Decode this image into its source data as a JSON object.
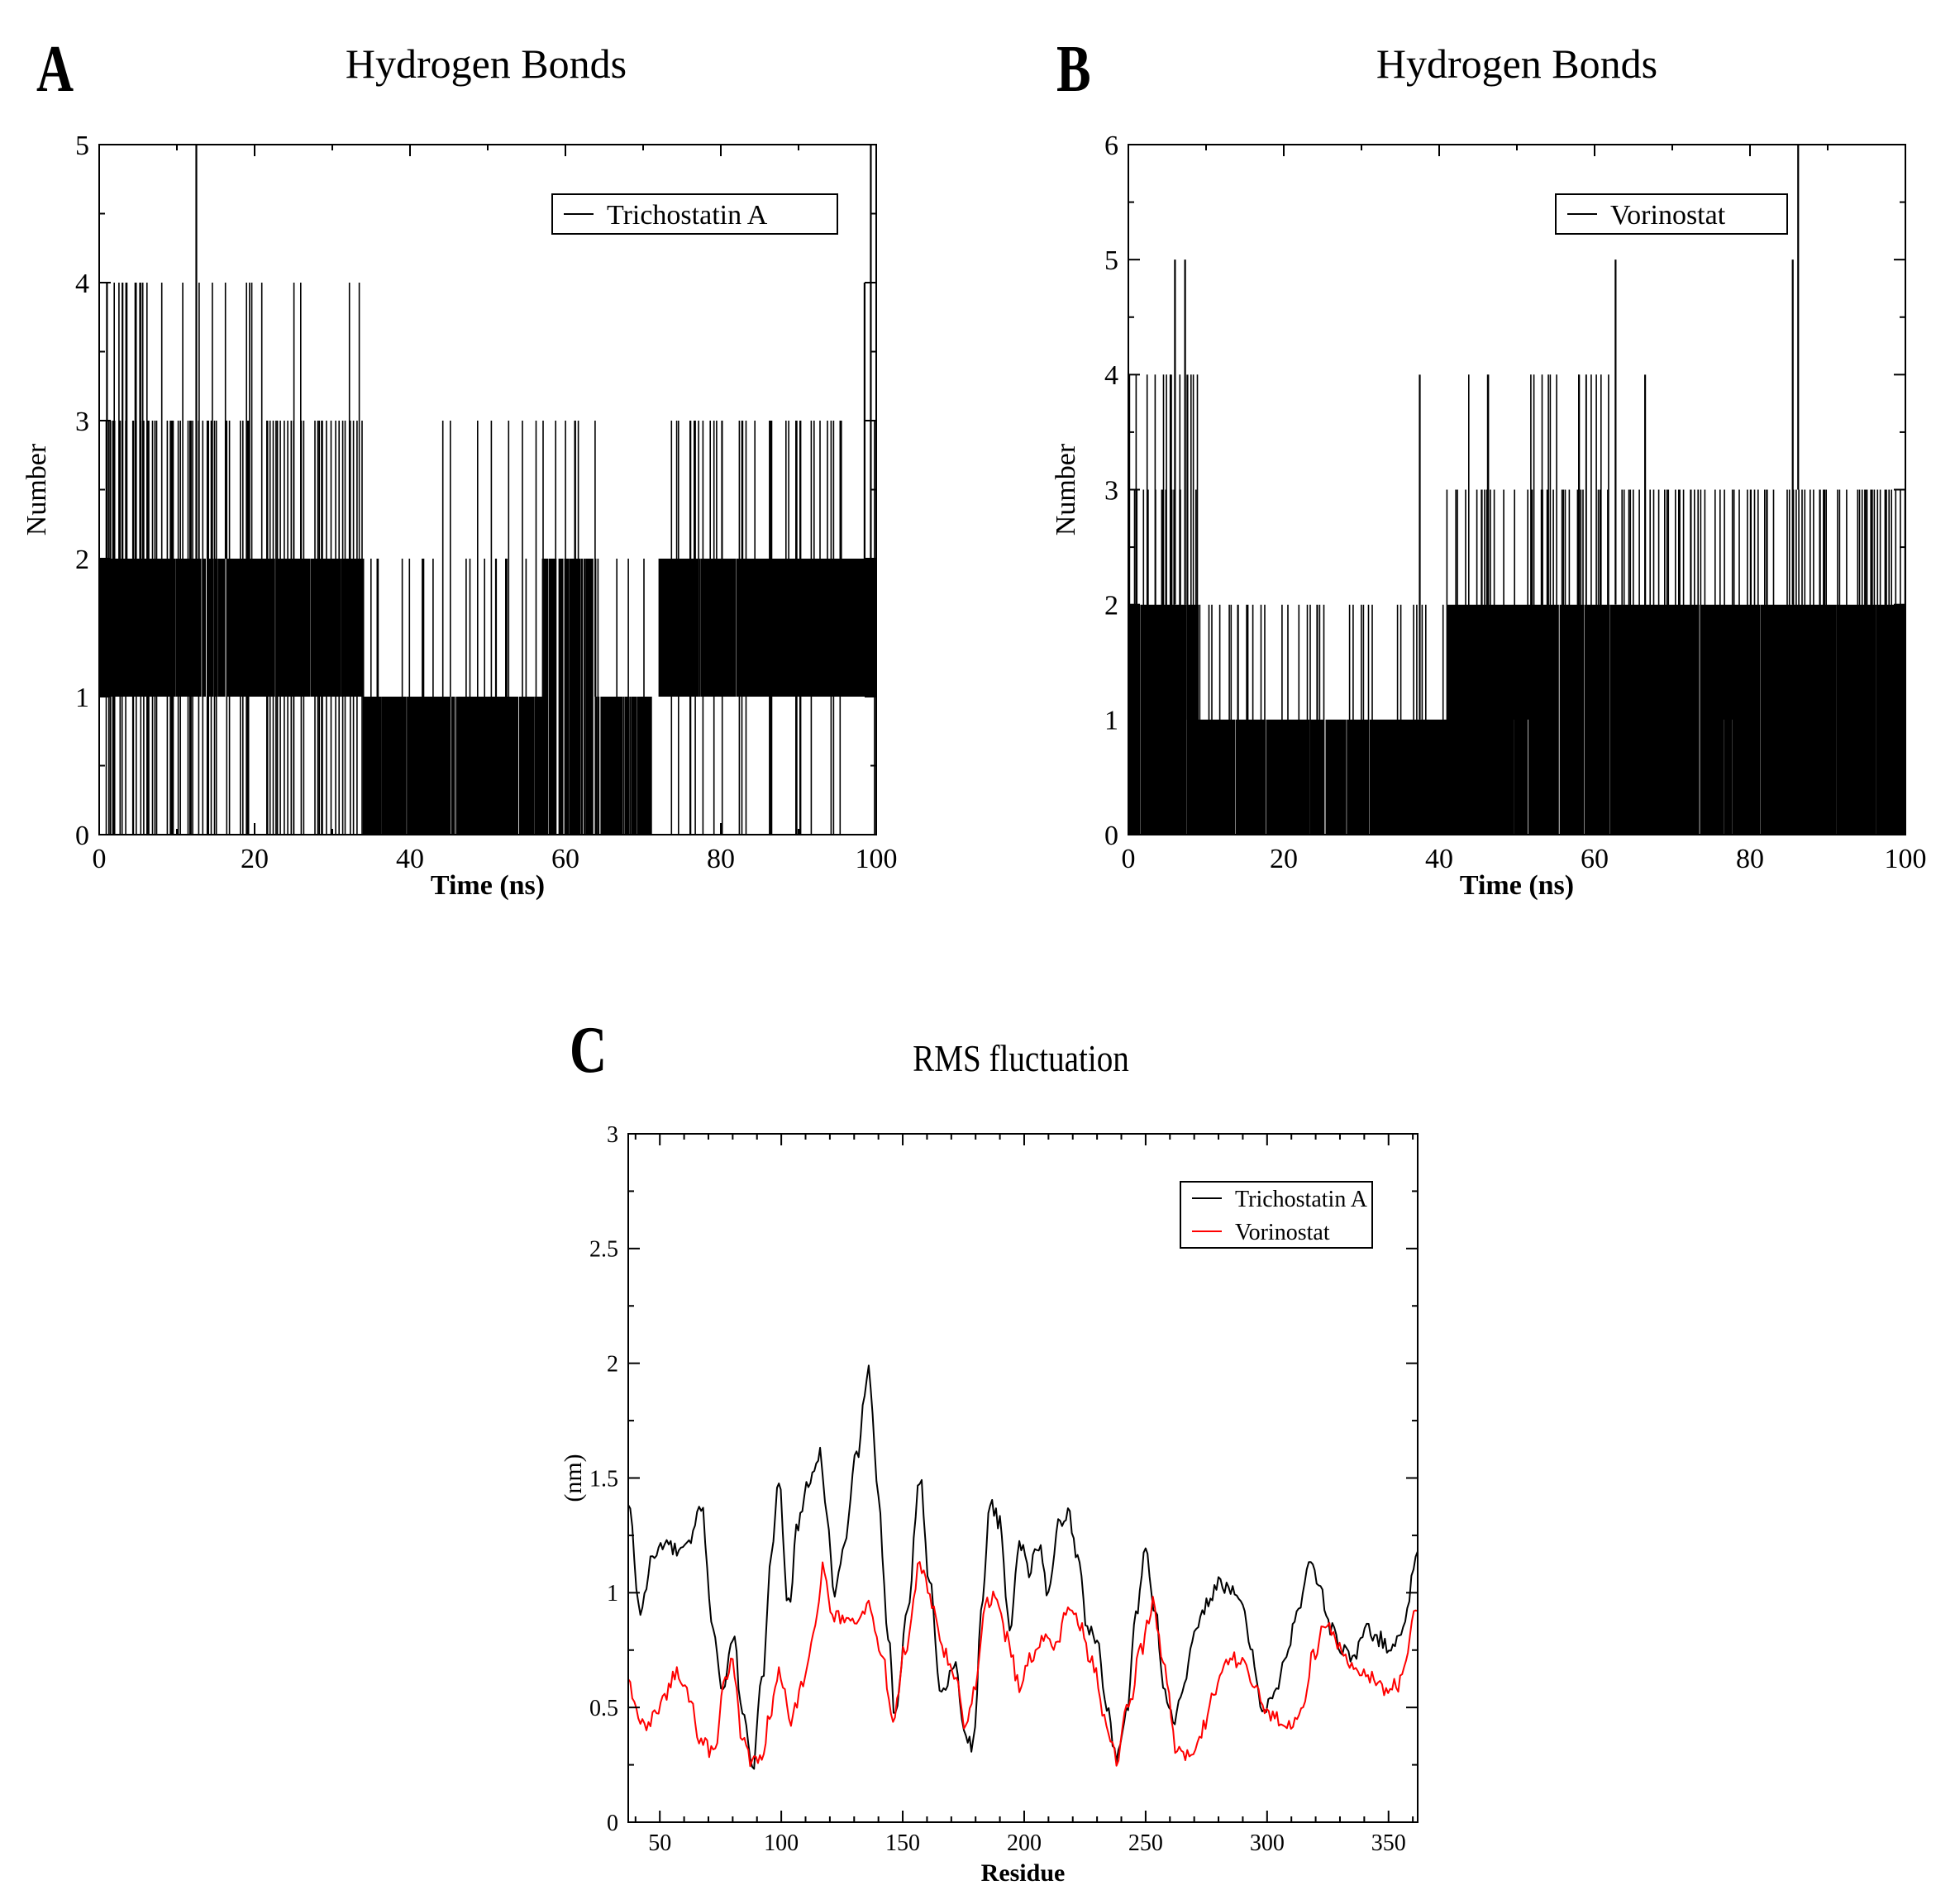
{
  "chart_data": [
    {
      "panel": "A",
      "type": "line",
      "title": "Hydrogen Bonds",
      "xlabel": "Time (ns)",
      "ylabel": "Number",
      "xlim": [
        0,
        100
      ],
      "ylim": [
        0,
        5
      ],
      "xticks": [
        0,
        20,
        40,
        60,
        80,
        100
      ],
      "yticks": [
        0,
        1,
        2,
        3,
        4,
        5
      ],
      "legend_position": "top-right",
      "series": [
        {
          "name": "Trichostatin A",
          "color": "#000000",
          "segments": [
            {
              "x": [
                0,
                13
              ],
              "bands": [
                [
                  1,
                  2,
                  0.95
                ],
                [
                  0,
                  3,
                  0.18
                ],
                [
                  2,
                  4,
                  0.12
                ]
              ]
            },
            {
              "x": [
                13,
                25
              ],
              "bands": [
                [
                  1,
                  2,
                  0.9
                ],
                [
                  0,
                  3,
                  0.15
                ],
                [
                  2,
                  4,
                  0.06
                ]
              ]
            },
            {
              "x": [
                25,
                34
              ],
              "bands": [
                [
                  1,
                  2,
                  0.95
                ],
                [
                  0,
                  3,
                  0.15
                ],
                [
                  2,
                  4,
                  0.04
                ]
              ]
            },
            {
              "x": [
                34,
                42
              ],
              "bands": [
                [
                  0,
                  1,
                  0.8
                ],
                [
                  0,
                  2,
                  0.08
                ],
                [
                  1,
                  3,
                  0.03
                ]
              ]
            },
            {
              "x": [
                42,
                57
              ],
              "bands": [
                [
                  0,
                  1,
                  0.85
                ],
                [
                  1,
                  2,
                  0.05
                ],
                [
                  1,
                  3,
                  0.03
                ]
              ]
            },
            {
              "x": [
                57,
                64
              ],
              "bands": [
                [
                  0,
                  2,
                  0.7
                ],
                [
                  1,
                  3,
                  0.06
                ]
              ]
            },
            {
              "x": [
                64,
                71
              ],
              "bands": [
                [
                  0,
                  1,
                  0.85
                ],
                [
                  1,
                  2,
                  0.08
                ]
              ]
            },
            {
              "x": [
                72,
                100
              ],
              "bands": [
                [
                  1,
                  2,
                  0.97
                ],
                [
                  0,
                  3,
                  0.12
                ],
                [
                  2,
                  3,
                  0.05
                ]
              ]
            }
          ],
          "spikes": [
            [
              12.5,
              5
            ],
            [
              99.3,
              5
            ],
            [
              1,
              4
            ],
            [
              3,
              4
            ],
            [
              98.5,
              4
            ],
            [
              100,
              3
            ]
          ]
        }
      ]
    },
    {
      "panel": "B",
      "type": "line",
      "title": "Hydrogen Bonds",
      "xlabel": "Time (ns)",
      "ylabel": "Number",
      "xlim": [
        0,
        100
      ],
      "ylim": [
        0,
        6
      ],
      "xticks": [
        0,
        20,
        40,
        60,
        80,
        100
      ],
      "yticks": [
        0,
        1,
        2,
        3,
        4,
        5,
        6
      ],
      "legend_position": "top-right",
      "series": [
        {
          "name": "Vorinostat",
          "color": "#000000",
          "segments": [
            {
              "x": [
                0,
                9
              ],
              "bands": [
                [
                  0,
                  2,
                  0.95
                ],
                [
                  1,
                  3,
                  0.2
                ],
                [
                  2,
                  4,
                  0.06
                ]
              ]
            },
            {
              "x": [
                9,
                41
              ],
              "bands": [
                [
                  0,
                  1,
                  0.97
                ],
                [
                  1,
                  2,
                  0.1
                ]
              ]
            },
            {
              "x": [
                41,
                62
              ],
              "bands": [
                [
                  0,
                  2,
                  0.95
                ],
                [
                  1,
                  3,
                  0.15
                ],
                [
                  2,
                  4,
                  0.03
                ]
              ]
            },
            {
              "x": [
                62,
                85
              ],
              "bands": [
                [
                  0,
                  2,
                  0.95
                ],
                [
                  1,
                  3,
                  0.12
                ]
              ]
            },
            {
              "x": [
                85,
                100
              ],
              "bands": [
                [
                  0,
                  2,
                  0.95
                ],
                [
                  1,
                  3,
                  0.18
                ]
              ]
            }
          ],
          "spikes": [
            [
              6,
              5
            ],
            [
              7.3,
              5
            ],
            [
              5.5,
              4
            ],
            [
              7.6,
              4
            ],
            [
              37.5,
              4
            ],
            [
              62.7,
              5
            ],
            [
              85.5,
              5
            ],
            [
              86.2,
              6
            ],
            [
              58,
              4
            ],
            [
              66.5,
              4
            ]
          ]
        }
      ]
    },
    {
      "panel": "C",
      "type": "line",
      "title": "RMS fluctuation",
      "xlabel": "Residue",
      "ylabel": "(nm)",
      "xlim": [
        37,
        362
      ],
      "ylim": [
        0,
        3
      ],
      "xticks": [
        50,
        100,
        150,
        200,
        250,
        300,
        350
      ],
      "yticks": [
        0,
        0.5,
        1,
        1.5,
        2,
        2.5,
        3
      ],
      "ytick_labels": [
        "0",
        "0.5",
        "1",
        "1.5",
        "2",
        "2.5",
        "3"
      ],
      "legend_position": "top-right",
      "series": [
        {
          "name": "Trichostatin A",
          "color": "#000000",
          "x": [
            37,
            42,
            47,
            52,
            57,
            62,
            67,
            72,
            76,
            80,
            84,
            88,
            92,
            96,
            99,
            103,
            107,
            112,
            116,
            118,
            122,
            126,
            131,
            136,
            140,
            144,
            147,
            152,
            157,
            161,
            166,
            171,
            176,
            179,
            183,
            186,
            190,
            194,
            198,
            202,
            206,
            210,
            214,
            218,
            222,
            226,
            230,
            234,
            238,
            242,
            246,
            250,
            254,
            258,
            262,
            266,
            270,
            275,
            280,
            285,
            290,
            294,
            298,
            303,
            308,
            313,
            318,
            322,
            326,
            331,
            336,
            341,
            346,
            351,
            356,
            362
          ],
          "y": [
            1.38,
            0.92,
            1.15,
            1.22,
            1.18,
            1.2,
            1.38,
            0.85,
            0.55,
            0.82,
            0.5,
            0.22,
            0.6,
            1.2,
            1.48,
            0.95,
            1.3,
            1.5,
            1.6,
            1.4,
            1.0,
            1.2,
            1.6,
            1.97,
            1.4,
            0.8,
            0.45,
            0.95,
            1.5,
            1.05,
            0.55,
            0.7,
            0.38,
            0.33,
            1.0,
            1.4,
            1.3,
            0.85,
            1.22,
            1.1,
            1.2,
            1.0,
            1.3,
            1.35,
            1.15,
            0.85,
            0.8,
            0.5,
            0.27,
            0.48,
            0.9,
            1.2,
            0.92,
            0.55,
            0.45,
            0.6,
            0.8,
            0.95,
            1.05,
            1.0,
            0.95,
            0.72,
            0.5,
            0.55,
            0.72,
            0.95,
            1.15,
            1.0,
            0.85,
            0.75,
            0.72,
            0.85,
            0.8,
            0.75,
            0.85,
            1.18
          ]
        },
        {
          "name": "Vorinostat",
          "color": "#ff0000",
          "x": [
            37,
            42,
            47,
            52,
            57,
            62,
            67,
            72,
            77,
            80,
            84,
            88,
            92,
            96,
            99,
            104,
            109,
            114,
            117,
            121,
            126,
            131,
            136,
            141,
            146,
            151,
            157,
            162,
            167,
            172,
            176,
            180,
            184,
            188,
            193,
            198,
            203,
            208,
            213,
            218,
            223,
            228,
            233,
            238,
            243,
            248,
            253,
            258,
            263,
            268,
            273,
            278,
            284,
            289,
            294,
            299,
            304,
            309,
            314,
            319,
            324,
            329,
            334,
            339,
            344,
            349,
            354,
            362
          ],
          "y": [
            0.62,
            0.42,
            0.45,
            0.55,
            0.65,
            0.55,
            0.35,
            0.3,
            0.6,
            0.7,
            0.35,
            0.25,
            0.3,
            0.5,
            0.65,
            0.45,
            0.6,
            0.85,
            1.1,
            0.9,
            0.9,
            0.85,
            0.95,
            0.75,
            0.45,
            0.75,
            1.12,
            0.95,
            0.75,
            0.6,
            0.42,
            0.6,
            0.95,
            1.0,
            0.8,
            0.6,
            0.72,
            0.8,
            0.75,
            0.95,
            0.85,
            0.7,
            0.45,
            0.28,
            0.5,
            0.75,
            0.95,
            0.65,
            0.3,
            0.28,
            0.4,
            0.55,
            0.72,
            0.7,
            0.62,
            0.5,
            0.45,
            0.42,
            0.5,
            0.72,
            0.88,
            0.78,
            0.7,
            0.65,
            0.62,
            0.58,
            0.6,
            0.92
          ]
        }
      ]
    }
  ]
}
